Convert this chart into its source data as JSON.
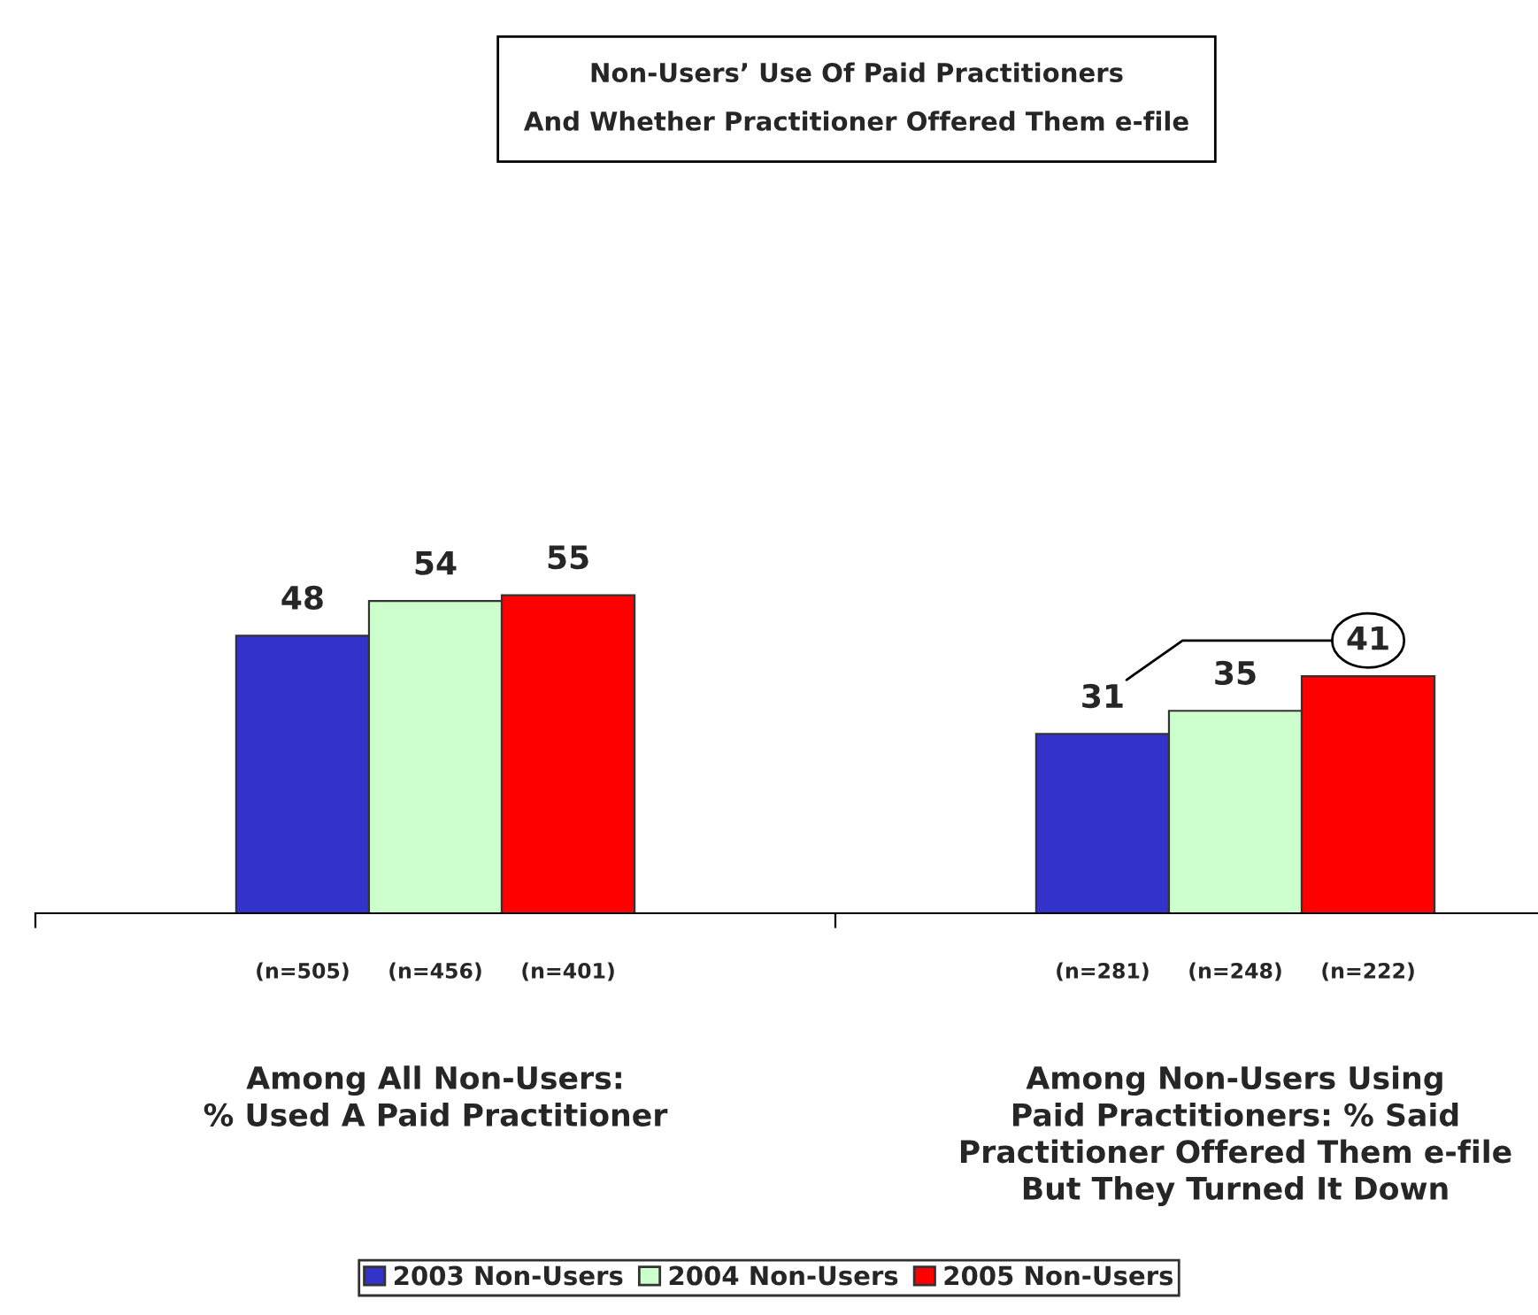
{
  "chart_data": {
    "type": "bar",
    "title": "Non-Users’ Use Of Paid Practitioners\nAnd Whether Practitioner Offered Them e-file",
    "categories": [
      "Among All Non-Users:\n% Used A Paid Practitioner",
      "Among Non-Users Using\nPaid Practitioners: % Said\nPractitioner Offered Them e-file\nBut They Turned It Down"
    ],
    "series": [
      {
        "name": "2003 Non-Users",
        "color": "#3333cc",
        "values": [
          48,
          31
        ]
      },
      {
        "name": "2004 Non-Users",
        "color": "#ccffcc",
        "values": [
          54,
          35
        ]
      },
      {
        "name": "2005 Non-Users",
        "color": "#ff0000",
        "values": [
          55,
          41
        ]
      }
    ],
    "data_labels": true,
    "legend": "bottom",
    "grid": false,
    "annotations": [
      "(n=505)",
      "(n=456)",
      "(n=401)",
      "(n=281)",
      "(n=248)",
      "(n=222)"
    ]
  }
}
